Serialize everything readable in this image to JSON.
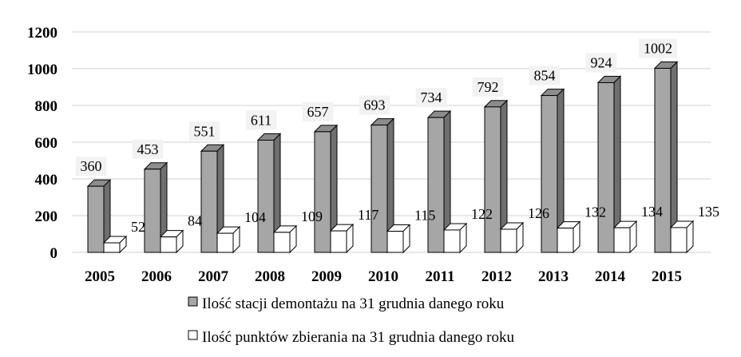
{
  "chart_data": {
    "type": "bar",
    "categories": [
      "2005",
      "2006",
      "2007",
      "2008",
      "2009",
      "2010",
      "2011",
      "2012",
      "2013",
      "2014",
      "2015"
    ],
    "series": [
      {
        "name": "Ilość stacji demontażu na 31 grudnia danego roku",
        "values": [
          360,
          453,
          551,
          611,
          657,
          693,
          734,
          792,
          854,
          924,
          1002
        ],
        "color": "#a6a6a6"
      },
      {
        "name": "Ilość punktów zbierania na 31 grudnia danego roku",
        "values": [
          52,
          84,
          104,
          109,
          117,
          115,
          122,
          126,
          132,
          134,
          135
        ],
        "color": "#ffffff"
      }
    ],
    "yticks": [
      "0",
      "200",
      "400",
      "600",
      "800",
      "1000",
      "1200"
    ],
    "ylim": [
      0,
      1200
    ],
    "grid": true,
    "legend_position": "bottom",
    "title": "",
    "xlabel": "",
    "ylabel": ""
  }
}
